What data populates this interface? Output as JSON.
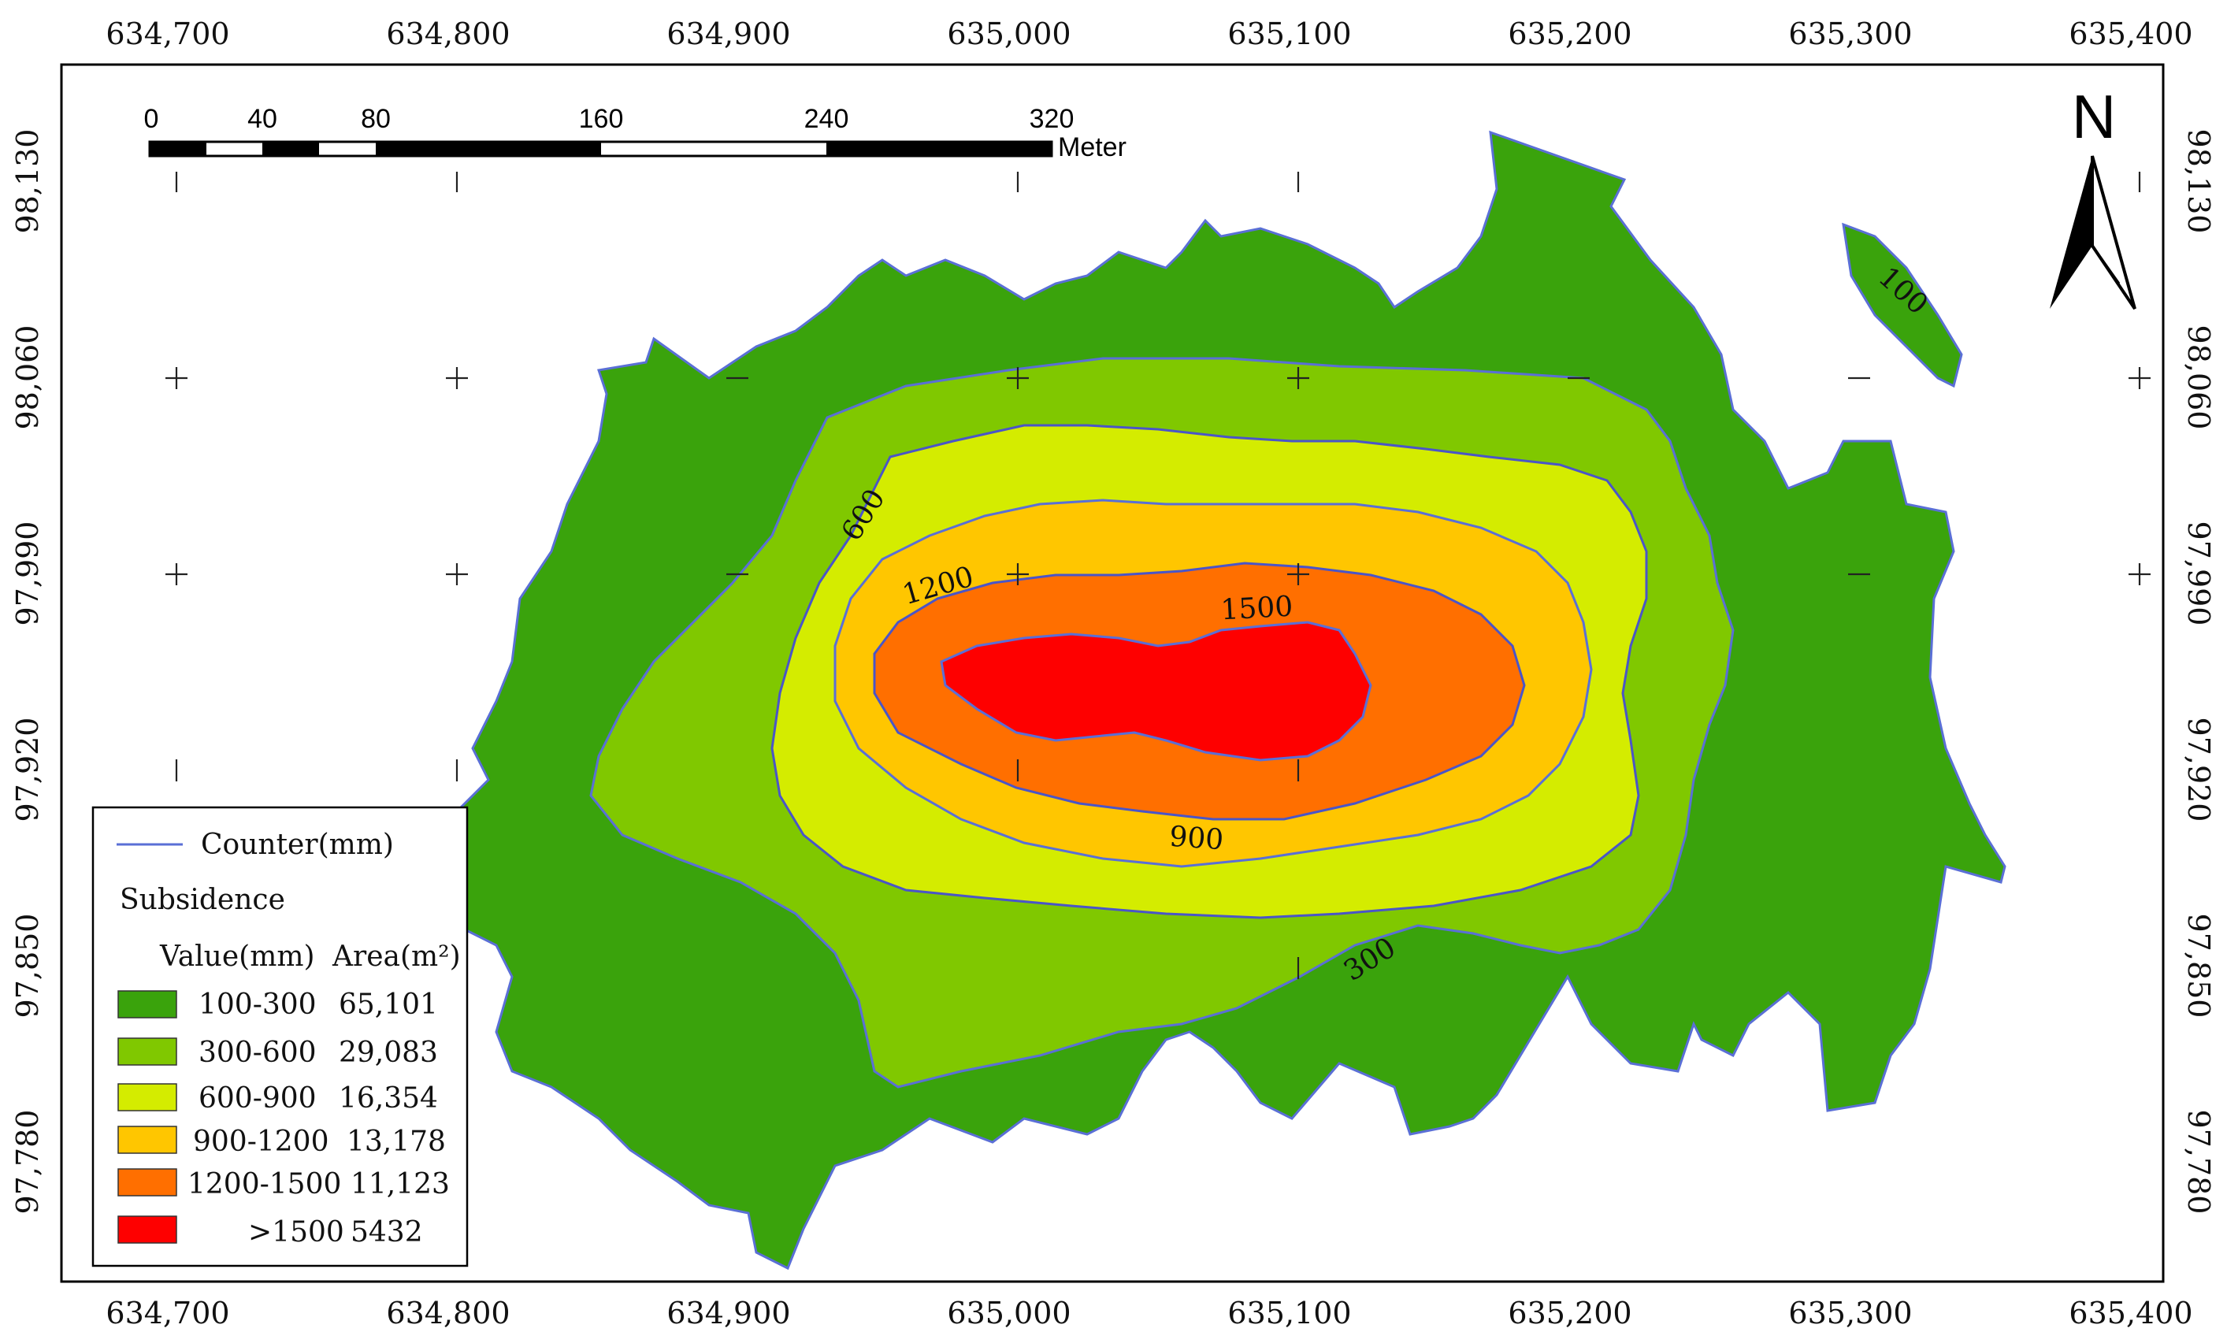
{
  "colors": {
    "class_100_300": "#3aa30c",
    "class_300_600": "#80c800",
    "class_600_900": "#d4ec00",
    "class_900_1200": "#ffc600",
    "class_1200_1500": "#ff6f00",
    "class_gt_1500": "#fe0000",
    "contour_line": "#5a6fd6",
    "frame": "#000000"
  },
  "x_axis": {
    "ticks_top": [
      "634,700",
      "634,800",
      "634,900",
      "635,000",
      "635,100",
      "635,200",
      "635,300",
      "635,400"
    ],
    "ticks_bottom": [
      "634,700",
      "634,800",
      "634,900",
      "635,000",
      "635,100",
      "635,200",
      "635,300",
      "635,400"
    ]
  },
  "y_axis": {
    "ticks_left": [
      "98,130",
      "98,060",
      "97,990",
      "97,920",
      "97,850",
      "97,780"
    ],
    "ticks_right": [
      "98,130",
      "98,060",
      "97,990",
      "97,920",
      "97,850",
      "97,780"
    ]
  },
  "scale_bar": {
    "labels": [
      "0",
      "40",
      "80",
      "160",
      "240",
      "320"
    ],
    "unit": "Meter"
  },
  "north_arrow": {
    "label": "N",
    "icon": "north-arrow-icon"
  },
  "contour_labels": [
    "100",
    "300",
    "600",
    "900",
    "1200",
    "1500"
  ],
  "legend": {
    "contour_label": "Counter(mm)",
    "heading": "Subsidence",
    "col_value": "Value(mm)",
    "col_area": "Area(m²)",
    "items": [
      {
        "value": "100-300",
        "area": "65,101"
      },
      {
        "value": "300-600",
        "area": "29,083"
      },
      {
        "value": "600-900",
        "area": "16,354"
      },
      {
        "value": "900-1200",
        "area": "13,178"
      },
      {
        "value": "1200-1500",
        "area": "11,123"
      },
      {
        "value": ">1500",
        "area": "5432"
      }
    ]
  }
}
